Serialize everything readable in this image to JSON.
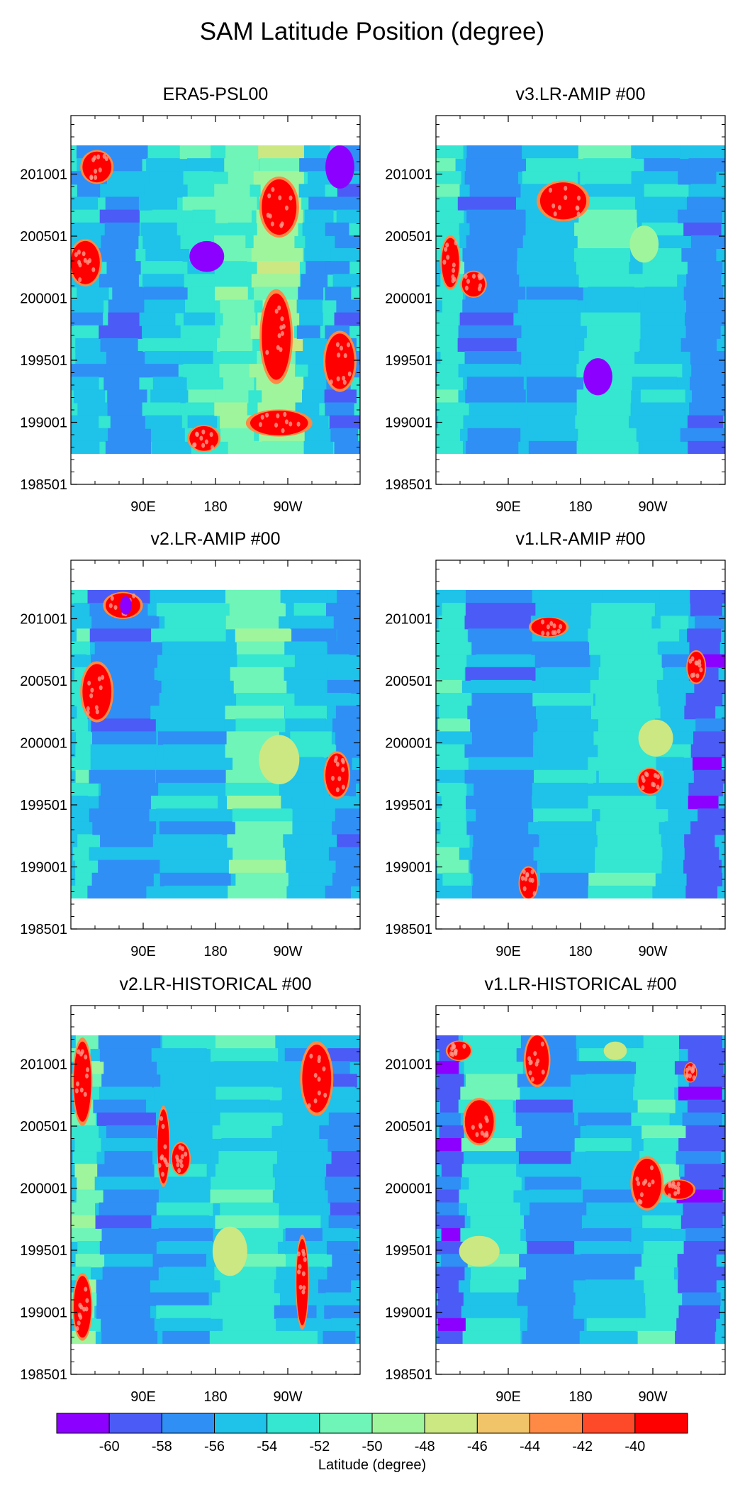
{
  "chart_data": {
    "type": "heatmap",
    "title": "SAM Latitude Position (degree)",
    "x_ticks": [
      "90E",
      "180",
      "90W"
    ],
    "y_ticks": [
      "198501",
      "199001",
      "199501",
      "200001",
      "200501",
      "201001"
    ],
    "colorbar": {
      "label": "Latitude (degree)",
      "levels": [
        "-60",
        "-58",
        "-56",
        "-54",
        "-52",
        "-50",
        "-48",
        "-46",
        "-44",
        "-42",
        "-40"
      ],
      "colors": [
        "#8c00ff",
        "#4a5cf5",
        "#2f8ff5",
        "#1fc2e8",
        "#35e6d0",
        "#6ff5b8",
        "#9ff59c",
        "#cbe882",
        "#f2c46a",
        "#ff8a45",
        "#ff4a2a",
        "#ff0000"
      ]
    },
    "panels": [
      {
        "title": "ERA5-PSL00",
        "background_level": 4,
        "bands": [
          {
            "lon0": 0.0,
            "lon1": 0.12,
            "level": 3
          },
          {
            "lon0": 0.12,
            "lon1": 0.26,
            "level": 2
          },
          {
            "lon0": 0.26,
            "lon1": 0.4,
            "level": 3
          },
          {
            "lon0": 0.4,
            "lon1": 0.52,
            "level": 4
          },
          {
            "lon0": 0.52,
            "lon1": 0.64,
            "level": 5
          },
          {
            "lon0": 0.64,
            "lon1": 0.8,
            "level": 6
          },
          {
            "lon0": 0.8,
            "lon1": 0.9,
            "level": 3
          },
          {
            "lon0": 0.9,
            "lon1": 1.0,
            "level": 2
          }
        ],
        "blobs": [
          {
            "lon": 0.72,
            "time": 0.8,
            "rlon": 0.06,
            "rtime": 0.09,
            "level": 11
          },
          {
            "lon": 0.71,
            "time": 0.38,
            "rlon": 0.05,
            "rtime": 0.14,
            "level": 11
          },
          {
            "lon": 0.93,
            "time": 0.3,
            "rlon": 0.05,
            "rtime": 0.09,
            "level": 11
          },
          {
            "lon": 0.05,
            "time": 0.62,
            "rlon": 0.05,
            "rtime": 0.07,
            "level": 11
          },
          {
            "lon": 0.09,
            "time": 0.93,
            "rlon": 0.05,
            "rtime": 0.05,
            "level": 11
          },
          {
            "lon": 0.47,
            "time": 0.64,
            "rlon": 0.06,
            "rtime": 0.05,
            "level": 0
          },
          {
            "lon": 0.93,
            "time": 0.93,
            "rlon": 0.05,
            "rtime": 0.07,
            "level": 0
          },
          {
            "lon": 0.46,
            "time": 0.05,
            "rlon": 0.05,
            "rtime": 0.04,
            "level": 11
          },
          {
            "lon": 0.72,
            "time": 0.1,
            "rlon": 0.1,
            "rtime": 0.04,
            "level": 11
          }
        ]
      },
      {
        "title": "v3.LR-AMIP  #00",
        "background_level": 3,
        "bands": [
          {
            "lon0": 0.0,
            "lon1": 0.1,
            "level": 4
          },
          {
            "lon0": 0.1,
            "lon1": 0.3,
            "level": 2
          },
          {
            "lon0": 0.3,
            "lon1": 0.5,
            "level": 3
          },
          {
            "lon0": 0.5,
            "lon1": 0.7,
            "level": 4
          },
          {
            "lon0": 0.7,
            "lon1": 0.86,
            "level": 3
          },
          {
            "lon0": 0.86,
            "lon1": 1.0,
            "level": 2
          }
        ],
        "blobs": [
          {
            "lon": 0.44,
            "time": 0.82,
            "rlon": 0.08,
            "rtime": 0.06,
            "level": 11
          },
          {
            "lon": 0.05,
            "time": 0.62,
            "rlon": 0.03,
            "rtime": 0.08,
            "level": 11
          },
          {
            "lon": 0.13,
            "time": 0.55,
            "rlon": 0.04,
            "rtime": 0.04,
            "level": 11
          },
          {
            "lon": 0.72,
            "time": 0.68,
            "rlon": 0.05,
            "rtime": 0.06,
            "level": 6
          },
          {
            "lon": 0.56,
            "time": 0.25,
            "rlon": 0.05,
            "rtime": 0.06,
            "level": 0
          }
        ]
      },
      {
        "title": "v2.LR-AMIP  #00",
        "background_level": 3,
        "bands": [
          {
            "lon0": 0.0,
            "lon1": 0.08,
            "level": 4
          },
          {
            "lon0": 0.08,
            "lon1": 0.3,
            "level": 2
          },
          {
            "lon0": 0.3,
            "lon1": 0.55,
            "level": 3
          },
          {
            "lon0": 0.55,
            "lon1": 0.75,
            "level": 5
          },
          {
            "lon0": 0.75,
            "lon1": 0.9,
            "level": 3
          },
          {
            "lon0": 0.9,
            "lon1": 1.0,
            "level": 2
          }
        ],
        "blobs": [
          {
            "lon": 0.18,
            "time": 0.95,
            "rlon": 0.06,
            "rtime": 0.04,
            "level": 11
          },
          {
            "lon": 0.19,
            "time": 0.95,
            "rlon": 0.02,
            "rtime": 0.03,
            "level": 0
          },
          {
            "lon": 0.09,
            "time": 0.67,
            "rlon": 0.05,
            "rtime": 0.09,
            "level": 11
          },
          {
            "lon": 0.92,
            "time": 0.4,
            "rlon": 0.04,
            "rtime": 0.07,
            "level": 11
          },
          {
            "lon": 0.72,
            "time": 0.45,
            "rlon": 0.07,
            "rtime": 0.08,
            "level": 7
          }
        ]
      },
      {
        "title": "v1.LR-AMIP  #00",
        "background_level": 3,
        "bands": [
          {
            "lon0": 0.0,
            "lon1": 0.12,
            "level": 4
          },
          {
            "lon0": 0.12,
            "lon1": 0.35,
            "level": 2
          },
          {
            "lon0": 0.35,
            "lon1": 0.55,
            "level": 3
          },
          {
            "lon0": 0.55,
            "lon1": 0.78,
            "level": 4
          },
          {
            "lon0": 0.78,
            "lon1": 0.88,
            "level": 3
          },
          {
            "lon0": 0.88,
            "lon1": 1.0,
            "level": 1
          }
        ],
        "blobs": [
          {
            "lon": 0.39,
            "time": 0.88,
            "rlon": 0.06,
            "rtime": 0.03,
            "level": 11
          },
          {
            "lon": 0.9,
            "time": 0.75,
            "rlon": 0.03,
            "rtime": 0.05,
            "level": 11
          },
          {
            "lon": 0.74,
            "time": 0.38,
            "rlon": 0.04,
            "rtime": 0.04,
            "level": 11
          },
          {
            "lon": 0.32,
            "time": 0.05,
            "rlon": 0.03,
            "rtime": 0.05,
            "level": 11
          },
          {
            "lon": 0.76,
            "time": 0.52,
            "rlon": 0.06,
            "rtime": 0.06,
            "level": 7
          }
        ]
      },
      {
        "title": "v2.LR-HISTORICAL  #00",
        "background_level": 3,
        "bands": [
          {
            "lon0": 0.0,
            "lon1": 0.1,
            "level": 5
          },
          {
            "lon0": 0.1,
            "lon1": 0.3,
            "level": 2
          },
          {
            "lon0": 0.3,
            "lon1": 0.5,
            "level": 3
          },
          {
            "lon0": 0.5,
            "lon1": 0.72,
            "level": 4
          },
          {
            "lon0": 0.72,
            "lon1": 0.88,
            "level": 3
          },
          {
            "lon0": 0.88,
            "lon1": 1.0,
            "level": 2
          }
        ],
        "blobs": [
          {
            "lon": 0.85,
            "time": 0.86,
            "rlon": 0.05,
            "rtime": 0.11,
            "level": 11
          },
          {
            "lon": 0.04,
            "time": 0.85,
            "rlon": 0.03,
            "rtime": 0.13,
            "level": 11
          },
          {
            "lon": 0.04,
            "time": 0.12,
            "rlon": 0.03,
            "rtime": 0.1,
            "level": 11
          },
          {
            "lon": 0.32,
            "time": 0.64,
            "rlon": 0.02,
            "rtime": 0.12,
            "level": 11
          },
          {
            "lon": 0.38,
            "time": 0.6,
            "rlon": 0.03,
            "rtime": 0.05,
            "level": 11
          },
          {
            "lon": 0.8,
            "time": 0.2,
            "rlon": 0.02,
            "rtime": 0.14,
            "level": 11
          },
          {
            "lon": 0.55,
            "time": 0.3,
            "rlon": 0.06,
            "rtime": 0.08,
            "level": 7
          }
        ]
      },
      {
        "title": "v1.LR-HISTORICAL  #00",
        "background_level": 3,
        "bands": [
          {
            "lon0": 0.0,
            "lon1": 0.1,
            "level": 1
          },
          {
            "lon0": 0.1,
            "lon1": 0.3,
            "level": 4
          },
          {
            "lon0": 0.3,
            "lon1": 0.5,
            "level": 2
          },
          {
            "lon0": 0.5,
            "lon1": 0.7,
            "level": 3
          },
          {
            "lon0": 0.7,
            "lon1": 0.85,
            "level": 4
          },
          {
            "lon0": 0.85,
            "lon1": 1.0,
            "level": 1
          }
        ],
        "blobs": [
          {
            "lon": 0.15,
            "time": 0.72,
            "rlon": 0.05,
            "rtime": 0.07,
            "level": 11
          },
          {
            "lon": 0.35,
            "time": 0.92,
            "rlon": 0.04,
            "rtime": 0.08,
            "level": 11
          },
          {
            "lon": 0.08,
            "time": 0.95,
            "rlon": 0.04,
            "rtime": 0.03,
            "level": 11
          },
          {
            "lon": 0.73,
            "time": 0.52,
            "rlon": 0.05,
            "rtime": 0.08,
            "level": 11
          },
          {
            "lon": 0.84,
            "time": 0.5,
            "rlon": 0.05,
            "rtime": 0.03,
            "level": 11
          },
          {
            "lon": 0.88,
            "time": 0.88,
            "rlon": 0.02,
            "rtime": 0.03,
            "level": 11
          },
          {
            "lon": 0.15,
            "time": 0.3,
            "rlon": 0.07,
            "rtime": 0.05,
            "level": 7
          },
          {
            "lon": 0.62,
            "time": 0.95,
            "rlon": 0.04,
            "rtime": 0.03,
            "level": 7
          }
        ]
      }
    ]
  }
}
